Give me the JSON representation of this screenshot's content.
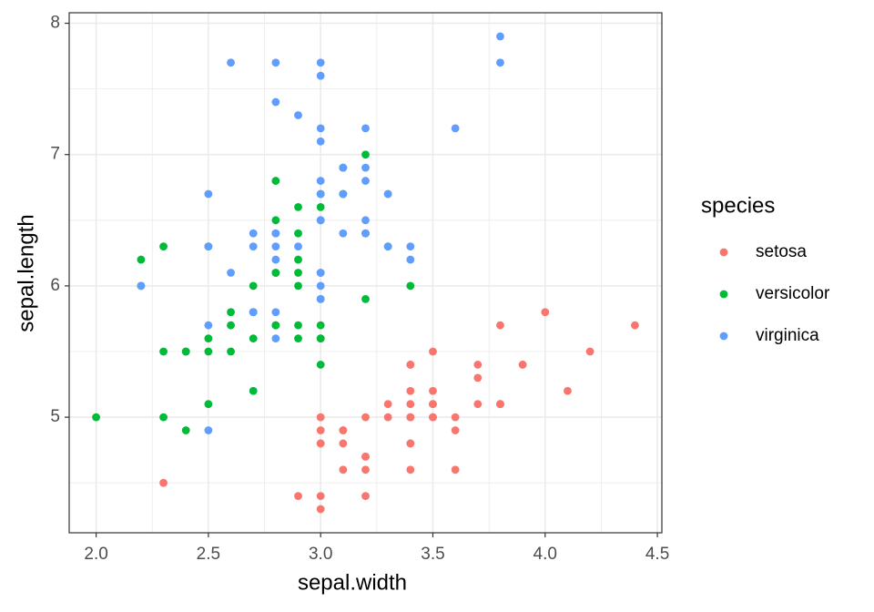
{
  "chart_data": {
    "type": "scatter",
    "x_label": "sepal.width",
    "y_label": "sepal.length",
    "legend_title": "species",
    "xlim": [
      1.88,
      4.52
    ],
    "ylim": [
      4.12,
      8.08
    ],
    "xticks": [
      {
        "value": 2.0,
        "label": "2.0"
      },
      2.5,
      {
        "value": 3.0,
        "label": "3.0"
      },
      3.5,
      {
        "value": 4.0,
        "label": "4.0"
      },
      4.5
    ],
    "yticks": [
      5,
      6,
      7,
      8
    ],
    "grid": true,
    "minor_grid": true,
    "legend": "right",
    "series": [
      {
        "name": "setosa",
        "color": "#F8766D",
        "x": [
          3.5,
          3.0,
          3.2,
          3.1,
          3.6,
          3.9,
          3.4,
          3.4,
          2.9,
          3.1,
          3.7,
          3.4,
          3.0,
          3.0,
          4.0,
          4.4,
          3.9,
          3.5,
          3.8,
          3.8,
          3.4,
          3.7,
          3.6,
          3.3,
          3.4,
          3.0,
          3.4,
          3.5,
          3.4,
          3.2,
          3.1,
          3.4,
          4.1,
          4.2,
          3.1,
          3.2,
          3.5,
          3.6,
          3.0,
          3.4,
          3.5,
          2.3,
          3.2,
          3.5,
          3.8,
          3.0,
          3.8,
          3.2,
          3.7,
          3.3
        ],
        "values": [
          5.1,
          4.9,
          4.7,
          4.6,
          5.0,
          5.4,
          4.6,
          5.0,
          4.4,
          4.9,
          5.4,
          4.8,
          4.8,
          4.3,
          5.8,
          5.7,
          5.4,
          5.1,
          5.7,
          5.1,
          5.4,
          5.1,
          4.6,
          5.1,
          4.8,
          5.0,
          5.0,
          5.2,
          5.2,
          4.7,
          4.8,
          5.4,
          5.2,
          5.5,
          4.9,
          5.0,
          5.5,
          4.9,
          4.4,
          5.1,
          5.0,
          4.5,
          4.4,
          5.0,
          5.1,
          4.8,
          5.1,
          4.6,
          5.3,
          5.0
        ]
      },
      {
        "name": "versicolor",
        "color": "#00BA38",
        "x": [
          3.2,
          3.2,
          3.1,
          2.3,
          2.8,
          2.8,
          3.3,
          2.4,
          2.9,
          2.7,
          2.0,
          3.0,
          2.2,
          2.9,
          2.9,
          3.1,
          3.0,
          2.7,
          2.2,
          2.5,
          3.2,
          2.8,
          2.5,
          2.8,
          2.9,
          3.0,
          2.8,
          3.0,
          2.9,
          2.6,
          2.4,
          2.4,
          2.7,
          2.7,
          3.0,
          3.4,
          3.1,
          2.3,
          3.0,
          2.5,
          2.6,
          3.0,
          2.6,
          2.3,
          2.7,
          3.0,
          2.9,
          2.9,
          2.5,
          2.8
        ],
        "values": [
          7.0,
          6.4,
          6.9,
          5.5,
          6.5,
          5.7,
          6.3,
          4.9,
          6.6,
          5.2,
          5.0,
          5.9,
          6.0,
          6.1,
          5.6,
          6.7,
          5.6,
          5.8,
          6.2,
          5.6,
          5.9,
          6.1,
          6.3,
          6.1,
          6.4,
          6.6,
          6.8,
          6.7,
          6.0,
          5.7,
          5.5,
          5.5,
          5.8,
          6.0,
          5.4,
          6.0,
          6.7,
          6.3,
          5.6,
          5.5,
          5.5,
          6.1,
          5.8,
          5.0,
          5.6,
          5.7,
          5.7,
          6.2,
          5.1,
          5.7
        ]
      },
      {
        "name": "virginica",
        "color": "#619CFF",
        "x": [
          3.3,
          2.7,
          3.0,
          2.9,
          3.0,
          3.0,
          2.5,
          2.9,
          2.5,
          3.6,
          3.2,
          2.7,
          3.0,
          2.5,
          2.8,
          3.2,
          3.0,
          3.8,
          2.6,
          2.2,
          3.2,
          2.8,
          2.8,
          2.7,
          3.3,
          3.2,
          2.8,
          3.0,
          2.8,
          3.0,
          2.8,
          3.8,
          2.8,
          2.8,
          2.6,
          3.0,
          3.4,
          3.1,
          3.0,
          3.1,
          3.1,
          3.1,
          2.7,
          3.2,
          3.3,
          3.0,
          2.5,
          3.0,
          3.4,
          3.0
        ],
        "values": [
          6.3,
          5.8,
          7.1,
          6.3,
          6.5,
          7.6,
          4.9,
          7.3,
          6.7,
          7.2,
          6.5,
          6.4,
          6.8,
          5.7,
          5.8,
          6.4,
          6.5,
          7.7,
          7.7,
          6.0,
          6.9,
          5.6,
          7.7,
          6.3,
          6.7,
          7.2,
          6.2,
          6.1,
          6.4,
          7.2,
          7.4,
          7.9,
          6.4,
          6.3,
          6.1,
          7.7,
          6.3,
          6.4,
          6.0,
          6.9,
          6.7,
          6.9,
          5.8,
          6.8,
          6.7,
          6.7,
          6.3,
          6.5,
          6.2,
          5.9
        ]
      }
    ]
  }
}
